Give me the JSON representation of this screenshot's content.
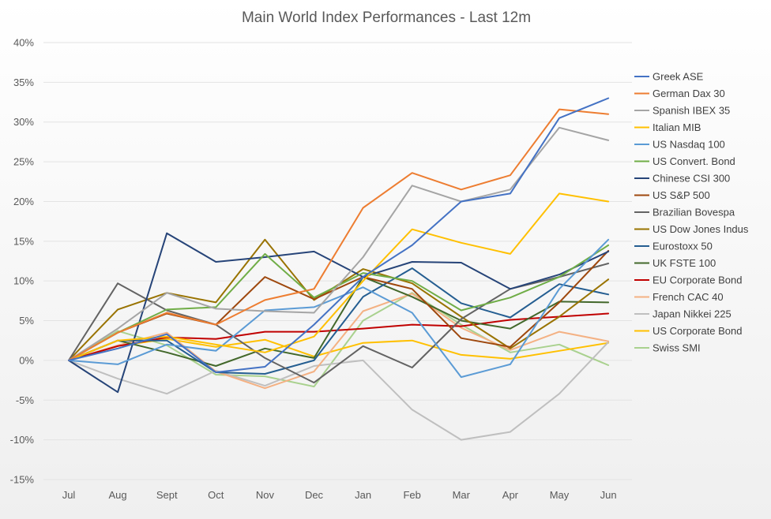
{
  "chart_data": {
    "type": "line",
    "title": "Main World Index Performances - Last 12m",
    "categories": [
      "Jul",
      "Aug",
      "Sept",
      "Oct",
      "Nov",
      "Dec",
      "Jan",
      "Feb",
      "Mar",
      "Apr",
      "May",
      "Jun"
    ],
    "ylim": [
      -15,
      40
    ],
    "ytick_step": 5,
    "ytick_labels": [
      "-15%",
      "-10%",
      "-5%",
      "0%",
      "5%",
      "10%",
      "15%",
      "20%",
      "25%",
      "30%",
      "35%",
      "40%"
    ],
    "y_format": "percent",
    "grid": "horizontal",
    "legend_position": "right",
    "series": [
      {
        "name": "Greek ASE",
        "color": "#4472c4",
        "values": [
          0,
          1.5,
          3.3,
          -1.5,
          -0.8,
          4.5,
          10.5,
          14.5,
          20,
          21,
          30.5,
          33
        ]
      },
      {
        "name": "German Dax 30",
        "color": "#ed7d31",
        "values": [
          0,
          3.5,
          6,
          4.5,
          7.6,
          9,
          19.2,
          23.6,
          21.5,
          23.3,
          31.6,
          31
        ]
      },
      {
        "name": "Spanish IBEX 35",
        "color": "#a5a5a5",
        "values": [
          0,
          4,
          8.5,
          6.5,
          6.2,
          6,
          13,
          22,
          20,
          21.5,
          29.3,
          27.7
        ]
      },
      {
        "name": "Italian MIB",
        "color": "#ffc000",
        "values": [
          0,
          2.5,
          3,
          2,
          1,
          3,
          10,
          16.5,
          14.8,
          13.4,
          21,
          20
        ]
      },
      {
        "name": "US Nasdaq 100",
        "color": "#5b9bd5",
        "values": [
          0,
          -0.5,
          2,
          1.2,
          6.3,
          6.7,
          9.2,
          6,
          -2.1,
          -0.5,
          9,
          15.2
        ]
      },
      {
        "name": "US Convert. Bond",
        "color": "#70ad47",
        "values": [
          0,
          3.5,
          6.4,
          6.7,
          13.4,
          7.9,
          11,
          10,
          6.3,
          7.9,
          10.5,
          14.5
        ]
      },
      {
        "name": "Chinese CSI 300",
        "color": "#264478",
        "values": [
          0,
          -4,
          16,
          12.4,
          13,
          13.7,
          10.5,
          12.4,
          12.3,
          9,
          10.8,
          13.7
        ]
      },
      {
        "name": "US S&P 500",
        "color": "#9e480e",
        "values": [
          0,
          3.5,
          5.9,
          4.5,
          10.5,
          7.7,
          10.5,
          9,
          2.8,
          1.7,
          7.3,
          13.8
        ]
      },
      {
        "name": "Brazilian Bovespa",
        "color": "#636363",
        "values": [
          0,
          9.7,
          6.3,
          4.5,
          0.3,
          -2.8,
          1.8,
          -0.9,
          5.2,
          9,
          10.5,
          12.2
        ]
      },
      {
        "name": "US Dow Jones Indus",
        "color": "#997300",
        "values": [
          0,
          6.4,
          8.5,
          7.3,
          15.2,
          7.6,
          11.5,
          9.7,
          5.5,
          1.5,
          5.5,
          10.2
        ]
      },
      {
        "name": "Eurostoxx 50",
        "color": "#255e91",
        "values": [
          0,
          2.5,
          2.5,
          -1.5,
          -1.7,
          0,
          8,
          11.6,
          7.2,
          5.4,
          9.6,
          8.3
        ]
      },
      {
        "name": "UK FSTE 100",
        "color": "#43682b",
        "values": [
          0,
          2.5,
          1,
          -0.7,
          1.5,
          0.3,
          10.5,
          8,
          5,
          4,
          7.4,
          7.3
        ]
      },
      {
        "name": "EU Corporate Bond",
        "color": "#c00000",
        "values": [
          0,
          1.8,
          2.9,
          2.7,
          3.6,
          3.6,
          4,
          4.5,
          4.3,
          5.1,
          5.5,
          5.9
        ]
      },
      {
        "name": "French CAC 40",
        "color": "#f4b183",
        "values": [
          0,
          1.9,
          3.5,
          -1.4,
          -3.5,
          -1.4,
          6.2,
          8.4,
          4.1,
          1.3,
          3.6,
          2.4
        ]
      },
      {
        "name": "Japan Nikkei 225",
        "color": "#bfbfbf",
        "values": [
          0,
          -2.3,
          -4.2,
          -1.3,
          -3.2,
          -0.7,
          0,
          -6.2,
          -10,
          -9,
          -4.2,
          2.3
        ]
      },
      {
        "name": "US Corporate Bond",
        "color": "#ffc000",
        "values": [
          0,
          1.8,
          2.7,
          1.7,
          2.6,
          0.5,
          2.2,
          2.5,
          0.7,
          0.2,
          1.2,
          2.2
        ]
      },
      {
        "name": "Swiss SMI",
        "color": "#a9d18e",
        "values": [
          0,
          3.7,
          1.9,
          -1.8,
          -2,
          -3.3,
          5,
          8.5,
          4.5,
          1,
          2,
          -0.6
        ]
      }
    ]
  }
}
